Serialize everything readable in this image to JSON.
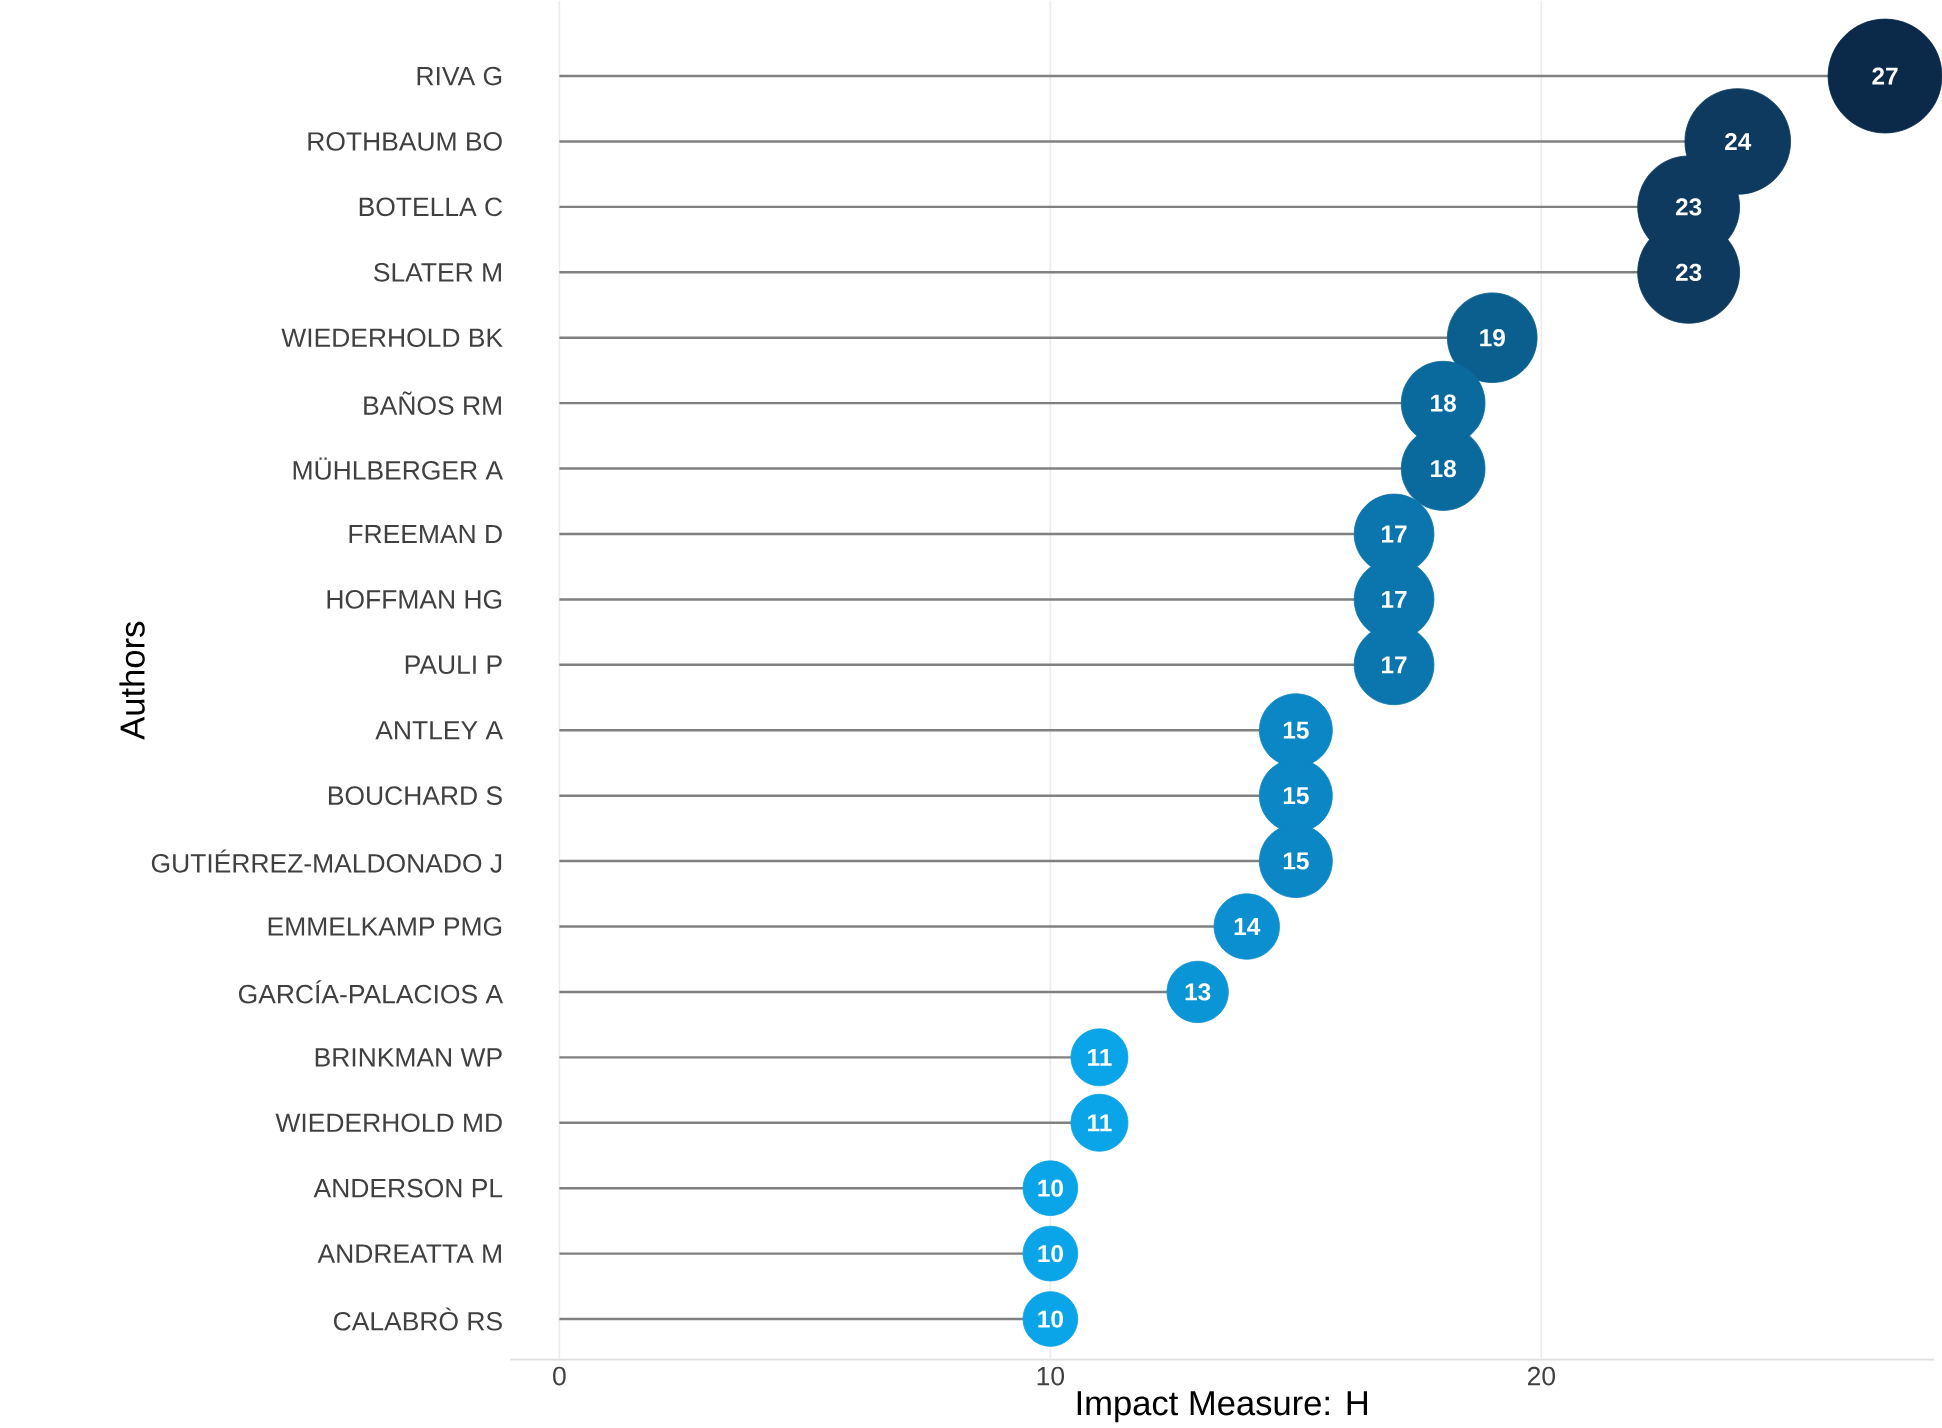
{
  "chart_data": {
    "type": "lollipop",
    "orientation": "horizontal",
    "xlabel": "Impact Measure: H",
    "ylabel": "Authors",
    "categories": [
      "RIVA G",
      "ROTHBAUM BO",
      "BOTELLA C",
      "SLATER M",
      "WIEDERHOLD BK",
      "BAÑOS RM",
      "MÜHLBERGER A",
      "FREEMAN D",
      "HOFFMAN HG",
      "PAULI P",
      "ANTLEY A",
      "BOUCHARD S",
      "GUTIÉRREZ-MALDONADO J",
      "EMMELKAMP PMG",
      "GARCÍA-PALACIOS A",
      "BRINKMAN WP",
      "WIEDERHOLD MD",
      "ANDERSON PL",
      "ANDREATTA M",
      "CALABRÒ RS"
    ],
    "values": [
      27,
      24,
      23,
      23,
      19,
      18,
      18,
      17,
      17,
      17,
      15,
      15,
      15,
      14,
      13,
      11,
      11,
      10,
      10,
      10
    ],
    "colors": [
      "#0b2a4a",
      "#0d3a5e",
      "#0d3a5e",
      "#0d3a5e",
      "#0a5f8f",
      "#0a6a9e",
      "#0a6a9e",
      "#0b76ad",
      "#0b76ad",
      "#0b76ad",
      "#0a87c4",
      "#0a87c4",
      "#0a87c4",
      "#0b8fd0",
      "#0a95d6",
      "#0aa4e8",
      "#0aa4e8",
      "#0aa4e8",
      "#0aa4e8",
      "#0aa4e8"
    ],
    "sizes": [
      1,
      0.86,
      0.8,
      0.8,
      0.62,
      0.54,
      0.54,
      0.49,
      0.49,
      0.49,
      0.41,
      0.41,
      0.41,
      0.33,
      0.29,
      0.25,
      0.25,
      0.23,
      0.23,
      0.23
    ],
    "data_labels": true,
    "xlim": [
      -1,
      28
    ],
    "xticks": [
      0,
      10,
      20
    ],
    "grid": "x"
  }
}
